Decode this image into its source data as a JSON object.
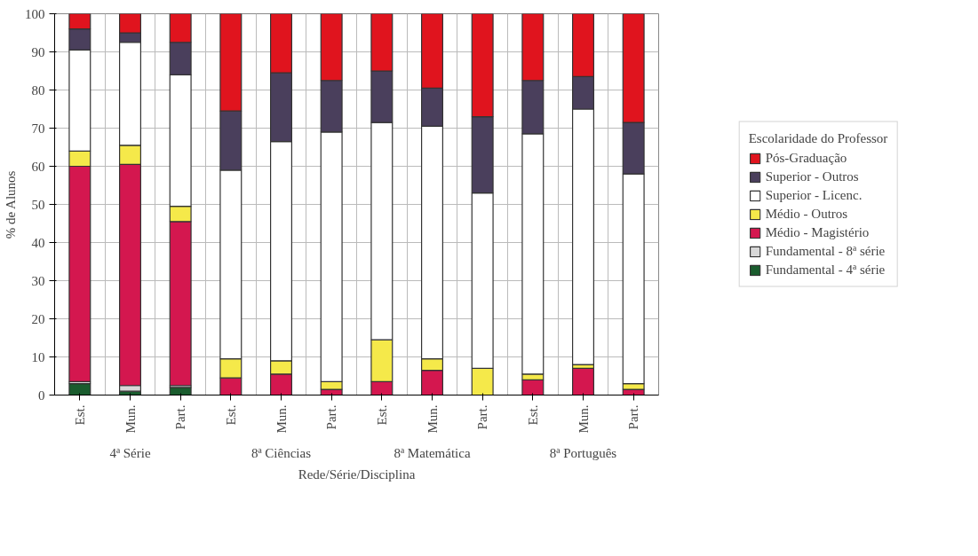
{
  "chart_data": {
    "type": "bar",
    "stacked": true,
    "xlabel": "Rede/Série/Disciplina",
    "ylabel": "% de Alunos",
    "legend_title": "Escolaridade do Professor",
    "categories": [
      "Est.",
      "Mun.",
      "Part.",
      "Est.",
      "Mun.",
      "Part.",
      "Est.",
      "Mun.",
      "Part.",
      "Est.",
      "Mun.",
      "Part."
    ],
    "annotations": [
      "4ª Série",
      "8ª Ciências",
      "8ª Matemática",
      "8ª Português"
    ],
    "ylim": [
      0,
      100
    ],
    "yticks": [
      0,
      10,
      20,
      30,
      40,
      50,
      60,
      70,
      80,
      90,
      100
    ],
    "grid": true,
    "legend": "right",
    "series": [
      {
        "name": "Fundamental - 4ª série",
        "color": "#1a5c2e",
        "values": [
          3,
          1,
          2,
          0,
          0,
          0,
          0,
          0,
          0,
          0,
          0,
          0
        ]
      },
      {
        "name": "Fundamental - 8ª série",
        "color": "#d8d8d8",
        "values": [
          0.5,
          1.5,
          0.5,
          0,
          0,
          0,
          0,
          0,
          0,
          0,
          0,
          0
        ]
      },
      {
        "name": "Médio - Magistério",
        "color": "#d4174f",
        "values": [
          56.5,
          58,
          43,
          4.5,
          5.5,
          1.5,
          3.5,
          6.5,
          0,
          4,
          7,
          1.5
        ]
      },
      {
        "name": "Médio - Outros",
        "color": "#f5e94a",
        "values": [
          4,
          5,
          4,
          5,
          3.5,
          2,
          11,
          3,
          7,
          1.5,
          1,
          1.5
        ]
      },
      {
        "name": "Superior - Licenc.",
        "color": "#ffffff",
        "values": [
          26.5,
          27,
          34.5,
          49.5,
          57.5,
          65.5,
          57,
          61,
          46,
          63,
          67,
          55
        ]
      },
      {
        "name": "Superior - Outros",
        "color": "#4a3f5c",
        "values": [
          5.5,
          2.5,
          8.5,
          15.5,
          18,
          13.5,
          13.5,
          10,
          20,
          14,
          8.5,
          13.5
        ]
      },
      {
        "name": "Pós-Graduação",
        "color": "#e0141e",
        "values": [
          4,
          5,
          7.5,
          25.5,
          15.5,
          17.5,
          15,
          19.5,
          27,
          17.5,
          16.5,
          28.5
        ]
      }
    ]
  }
}
